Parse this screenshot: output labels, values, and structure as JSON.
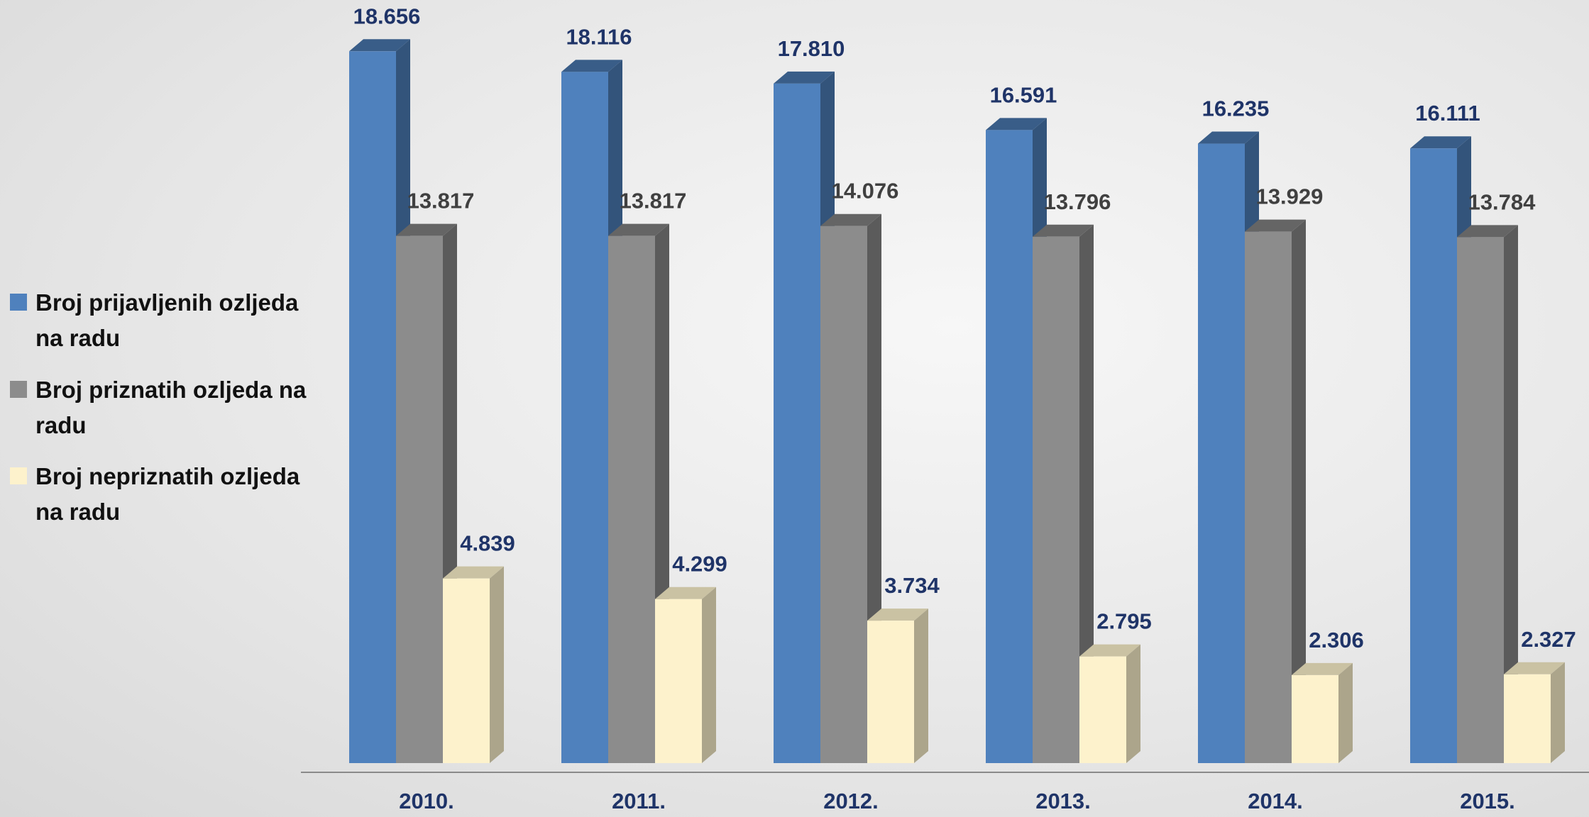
{
  "chart_data": {
    "type": "bar3d",
    "categories": [
      "2010.",
      "2011.",
      "2012.",
      "2013.",
      "2014.",
      "2015."
    ],
    "series": [
      {
        "name": "Broj prijavljenih ozljeda na radu",
        "color": "#4f81bd",
        "values": [
          18656,
          18116,
          17810,
          16591,
          16235,
          16111
        ],
        "value_labels": [
          "18.656",
          "18.116",
          "17.810",
          "16.591",
          "16.235",
          "16.111"
        ]
      },
      {
        "name": "Broj priznatih ozljeda na radu",
        "color": "#8c8c8c",
        "values": [
          13817,
          13817,
          14076,
          13796,
          13929,
          13784
        ],
        "value_labels": [
          "13.817",
          "13.817",
          "14.076",
          "13.796",
          "13.929",
          "13.784"
        ]
      },
      {
        "name": "Broj nepriznatih ozljeda na radu",
        "color": "#fdf2cc",
        "values": [
          4839,
          4299,
          3734,
          2795,
          2306,
          2327
        ],
        "value_labels": [
          "4.839",
          "4.299",
          "3.734",
          "2.795",
          "2.306",
          "2.327"
        ]
      }
    ],
    "ylim": [
      0,
      20000
    ]
  }
}
